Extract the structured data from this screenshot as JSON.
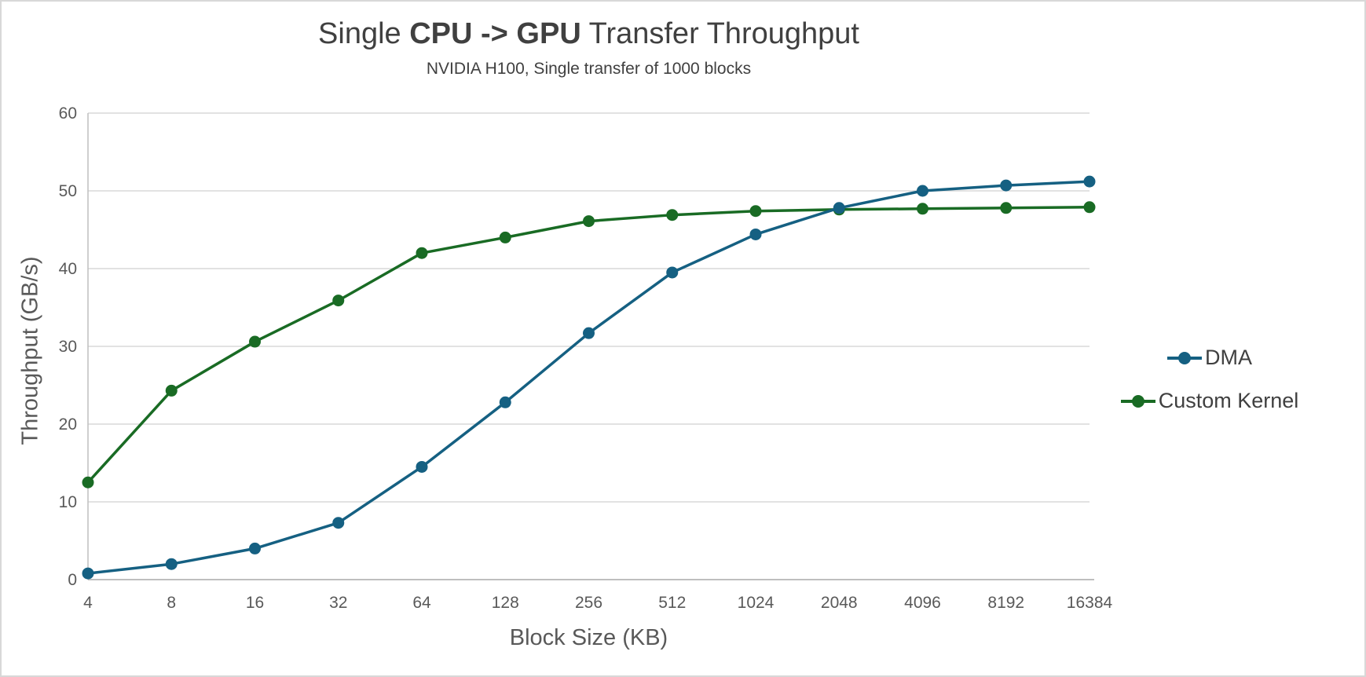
{
  "title": {
    "prefix": "Single ",
    "emphasis": "CPU -> GPU",
    "suffix": " Transfer Throughput"
  },
  "subtitle": "NVIDIA H100, Single transfer of 1000 blocks",
  "chart_data": {
    "type": "line",
    "title": "Single CPU -> GPU Transfer Throughput",
    "subtitle": "NVIDIA H100, Single transfer of 1000 blocks",
    "xlabel": "Block Size (KB)",
    "ylabel": "Throughput (GB/s)",
    "categories": [
      "4",
      "8",
      "16",
      "32",
      "64",
      "128",
      "256",
      "512",
      "1024",
      "2048",
      "4096",
      "8192",
      "16384"
    ],
    "series": [
      {
        "name": "DMA",
        "color": "#156082",
        "values": [
          0.8,
          2.0,
          4.0,
          7.3,
          14.5,
          22.8,
          31.7,
          39.5,
          44.4,
          47.8,
          50.0,
          50.7,
          51.2
        ]
      },
      {
        "name": "Custom Kernel",
        "color": "#196B24",
        "values": [
          12.5,
          24.3,
          30.6,
          35.9,
          42.0,
          44.0,
          46.1,
          46.9,
          47.4,
          47.6,
          47.7,
          47.8,
          47.9
        ]
      }
    ],
    "ylim": [
      0,
      60
    ],
    "yticks": [
      0,
      10,
      20,
      30,
      40,
      50,
      60
    ],
    "grid": true,
    "legend_position": "right"
  },
  "style": {
    "gridline_color": "#d9d9d9",
    "axis_line_color": "#bfbfbf",
    "tick_label_color": "#595959",
    "title_color": "#404040",
    "legend_text_color": "#404040",
    "background": "#ffffff",
    "border_color": "#d8d8d8"
  }
}
